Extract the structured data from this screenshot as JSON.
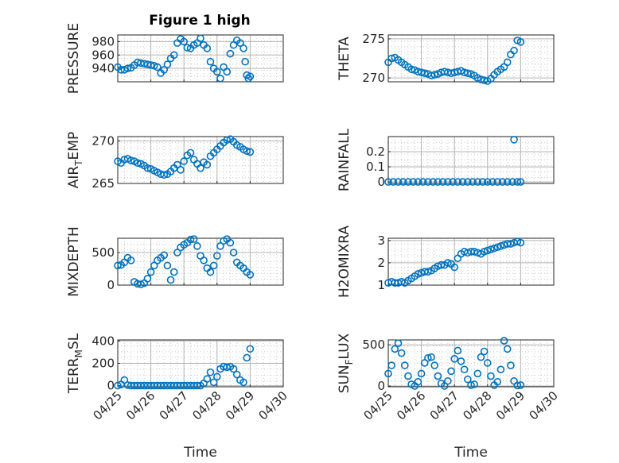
{
  "figure": {
    "title": "Figure 1 high",
    "marker_color": "#0072BD"
  },
  "chart_data": [
    {
      "type": "scatter",
      "ylabel": "PRESSURE",
      "xlabel": "",
      "ylim": [
        920,
        990
      ],
      "yticks": [
        940,
        960,
        980
      ],
      "grid": true,
      "x": [
        0.0,
        0.1,
        0.2,
        0.3,
        0.4,
        0.5,
        0.6,
        0.7,
        0.8,
        0.9,
        1.0,
        1.1,
        1.2,
        1.3,
        1.4,
        1.5,
        1.6,
        1.7,
        1.8,
        1.9,
        2.0,
        2.1,
        2.2,
        2.3,
        2.4,
        2.5,
        2.6,
        2.7,
        2.8,
        2.9,
        3.0,
        3.1,
        3.2,
        3.3,
        3.4,
        3.5,
        3.6,
        3.7,
        3.8,
        3.85,
        3.9,
        3.95,
        4.0
      ],
      "y": [
        942,
        938,
        938,
        940,
        941,
        945,
        949,
        948,
        947,
        946,
        945,
        944,
        942,
        933,
        938,
        946,
        955,
        960,
        978,
        984,
        980,
        971,
        970,
        975,
        978,
        985,
        975,
        970,
        950,
        940,
        935,
        925,
        942,
        935,
        962,
        975,
        982,
        978,
        970,
        950,
        930,
        925,
        928
      ]
    },
    {
      "type": "scatter",
      "ylabel": "THETA",
      "xlabel": "",
      "ylim": [
        269.5,
        275.5
      ],
      "yticks": [
        270,
        275
      ],
      "grid": true,
      "x": [
        0.0,
        0.1,
        0.2,
        0.3,
        0.4,
        0.5,
        0.6,
        0.7,
        0.8,
        0.9,
        1.0,
        1.1,
        1.2,
        1.3,
        1.4,
        1.5,
        1.6,
        1.7,
        1.8,
        1.9,
        2.0,
        2.1,
        2.2,
        2.3,
        2.4,
        2.5,
        2.6,
        2.7,
        2.8,
        2.9,
        3.0,
        3.1,
        3.2,
        3.3,
        3.4,
        3.5,
        3.6,
        3.7,
        3.8,
        3.9,
        4.0
      ],
      "y": [
        272.0,
        272.5,
        272.6,
        272.3,
        272.0,
        271.7,
        271.4,
        271.1,
        271.0,
        270.8,
        270.7,
        270.6,
        270.5,
        270.3,
        270.4,
        270.5,
        270.7,
        270.8,
        270.7,
        270.6,
        270.7,
        270.8,
        270.9,
        270.7,
        270.6,
        270.5,
        270.3,
        270.0,
        269.8,
        269.7,
        269.6,
        269.9,
        270.4,
        270.8,
        271.1,
        271.4,
        272.0,
        273.0,
        273.5,
        274.8,
        274.6
      ]
    },
    {
      "type": "scatter",
      "ylabel": "AIR_TEMP",
      "xlabel": "",
      "ylim": [
        265,
        270.5
      ],
      "yticks": [
        265,
        270
      ],
      "grid": true,
      "x": [
        0.0,
        0.1,
        0.2,
        0.3,
        0.4,
        0.5,
        0.6,
        0.7,
        0.8,
        0.9,
        1.0,
        1.1,
        1.2,
        1.3,
        1.4,
        1.5,
        1.6,
        1.7,
        1.8,
        1.9,
        2.0,
        2.1,
        2.2,
        2.3,
        2.4,
        2.5,
        2.6,
        2.7,
        2.8,
        2.9,
        3.0,
        3.1,
        3.2,
        3.3,
        3.4,
        3.5,
        3.6,
        3.7,
        3.8,
        3.9,
        4.0
      ],
      "y": [
        267.6,
        267.4,
        267.8,
        267.9,
        267.7,
        267.6,
        267.4,
        267.3,
        267.1,
        266.8,
        266.7,
        266.5,
        266.3,
        266.1,
        266.0,
        266.1,
        266.4,
        266.8,
        267.2,
        266.6,
        267.6,
        268.3,
        268.6,
        267.8,
        267.3,
        266.8,
        267.5,
        267.2,
        268.2,
        268.6,
        269.0,
        269.4,
        269.8,
        270.1,
        270.2,
        269.9,
        269.5,
        269.3,
        269.0,
        268.8,
        268.7
      ]
    },
    {
      "type": "scatter",
      "ylabel": "RAINFALL",
      "xlabel": "",
      "ylim": [
        -0.01,
        0.3
      ],
      "yticks": [
        0,
        0.1,
        0.2
      ],
      "ytick_labels": [
        "0",
        "0.1",
        "0.2"
      ],
      "grid": true,
      "x": [
        0.0,
        0.15,
        0.3,
        0.45,
        0.6,
        0.75,
        0.9,
        1.05,
        1.2,
        1.35,
        1.5,
        1.65,
        1.8,
        1.95,
        2.1,
        2.25,
        2.4,
        2.55,
        2.7,
        2.85,
        3.0,
        3.15,
        3.3,
        3.45,
        3.6,
        3.75,
        3.8,
        3.9,
        4.0
      ],
      "y": [
        0,
        0,
        0,
        0,
        0,
        0,
        0,
        0,
        0,
        0,
        0,
        0,
        0,
        0,
        0,
        0,
        0,
        0,
        0,
        0,
        0,
        0,
        0,
        0,
        0,
        0,
        0.28,
        0,
        0
      ]
    },
    {
      "type": "scatter",
      "ylabel": "MIXDEPTH",
      "xlabel": "",
      "ylim": [
        0,
        720
      ],
      "yticks": [
        0,
        500
      ],
      "grid": true,
      "x": [
        0.0,
        0.1,
        0.2,
        0.3,
        0.4,
        0.5,
        0.6,
        0.7,
        0.8,
        0.9,
        1.0,
        1.1,
        1.2,
        1.3,
        1.4,
        1.5,
        1.6,
        1.7,
        1.8,
        1.9,
        2.0,
        2.1,
        2.2,
        2.3,
        2.4,
        2.5,
        2.6,
        2.7,
        2.8,
        2.9,
        3.0,
        3.1,
        3.2,
        3.3,
        3.4,
        3.5,
        3.6,
        3.7,
        3.8,
        3.9,
        4.0
      ],
      "y": [
        300,
        310,
        350,
        420,
        380,
        50,
        20,
        10,
        30,
        100,
        200,
        300,
        380,
        420,
        460,
        300,
        80,
        200,
        500,
        580,
        620,
        650,
        700,
        710,
        600,
        450,
        380,
        260,
        200,
        300,
        450,
        600,
        680,
        720,
        650,
        500,
        350,
        300,
        260,
        200,
        160
      ]
    },
    {
      "type": "scatter",
      "ylabel": "H2OMIXRA",
      "xlabel": "",
      "ylim": [
        1,
        3.1
      ],
      "yticks": [
        1,
        2,
        3
      ],
      "grid": true,
      "x": [
        0.0,
        0.1,
        0.2,
        0.3,
        0.4,
        0.5,
        0.6,
        0.7,
        0.8,
        0.9,
        1.0,
        1.1,
        1.2,
        1.3,
        1.4,
        1.5,
        1.6,
        1.7,
        1.8,
        1.9,
        2.0,
        2.1,
        2.2,
        2.3,
        2.4,
        2.5,
        2.6,
        2.7,
        2.8,
        2.9,
        3.0,
        3.1,
        3.2,
        3.3,
        3.4,
        3.5,
        3.6,
        3.7,
        3.8,
        3.9,
        4.0
      ],
      "y": [
        1.1,
        1.15,
        1.1,
        1.1,
        1.15,
        1.1,
        1.2,
        1.3,
        1.4,
        1.5,
        1.55,
        1.6,
        1.6,
        1.65,
        1.75,
        1.85,
        1.9,
        1.9,
        2.0,
        1.95,
        1.8,
        2.2,
        2.4,
        2.5,
        2.45,
        2.5,
        2.5,
        2.45,
        2.4,
        2.5,
        2.55,
        2.6,
        2.65,
        2.7,
        2.75,
        2.8,
        2.85,
        2.85,
        2.9,
        2.95,
        2.9
      ]
    },
    {
      "type": "scatter",
      "ylabel": "TERR_MSL",
      "xlabel": "Time",
      "ylim": [
        -10,
        410
      ],
      "yticks": [
        0,
        200,
        400
      ],
      "grid": true,
      "x": [
        0.0,
        0.1,
        0.2,
        0.3,
        0.4,
        0.5,
        0.6,
        0.7,
        0.8,
        0.9,
        1.0,
        1.1,
        1.2,
        1.3,
        1.4,
        1.5,
        1.6,
        1.7,
        1.8,
        1.9,
        2.0,
        2.1,
        2.2,
        2.3,
        2.4,
        2.5,
        2.6,
        2.7,
        2.8,
        2.9,
        3.0,
        3.1,
        3.2,
        3.3,
        3.4,
        3.5,
        3.6,
        3.7,
        3.8,
        3.9,
        4.0
      ],
      "y": [
        0,
        10,
        50,
        5,
        0,
        0,
        0,
        0,
        0,
        0,
        0,
        0,
        0,
        0,
        0,
        0,
        0,
        0,
        0,
        0,
        0,
        0,
        0,
        0,
        0,
        0,
        20,
        60,
        120,
        30,
        80,
        150,
        170,
        165,
        170,
        150,
        100,
        50,
        30,
        250,
        330
      ]
    },
    {
      "type": "scatter",
      "ylabel": "SUN_FLUX",
      "xlabel": "Time",
      "ylim": [
        -10,
        560
      ],
      "yticks": [
        0,
        500
      ],
      "grid": true,
      "x": [
        0.0,
        0.1,
        0.2,
        0.3,
        0.4,
        0.5,
        0.6,
        0.7,
        0.8,
        0.9,
        1.0,
        1.1,
        1.2,
        1.3,
        1.4,
        1.5,
        1.6,
        1.7,
        1.8,
        1.9,
        2.0,
        2.1,
        2.2,
        2.3,
        2.4,
        2.5,
        2.6,
        2.7,
        2.8,
        2.9,
        3.0,
        3.1,
        3.2,
        3.3,
        3.4,
        3.5,
        3.6,
        3.7,
        3.8,
        3.9,
        4.0
      ],
      "y": [
        150,
        250,
        450,
        520,
        400,
        250,
        120,
        20,
        0,
        50,
        150,
        280,
        340,
        350,
        250,
        120,
        30,
        0,
        60,
        180,
        330,
        430,
        300,
        200,
        80,
        10,
        20,
        150,
        350,
        420,
        280,
        120,
        10,
        50,
        200,
        550,
        450,
        250,
        60,
        5,
        10
      ]
    }
  ],
  "x_axis": {
    "tick_values": [
      0,
      1,
      2,
      3,
      4,
      5
    ],
    "tick_labels": [
      "04/25",
      "04/26",
      "04/27",
      "04/28",
      "04/29",
      "04/30"
    ],
    "xlim": [
      0,
      5
    ]
  }
}
